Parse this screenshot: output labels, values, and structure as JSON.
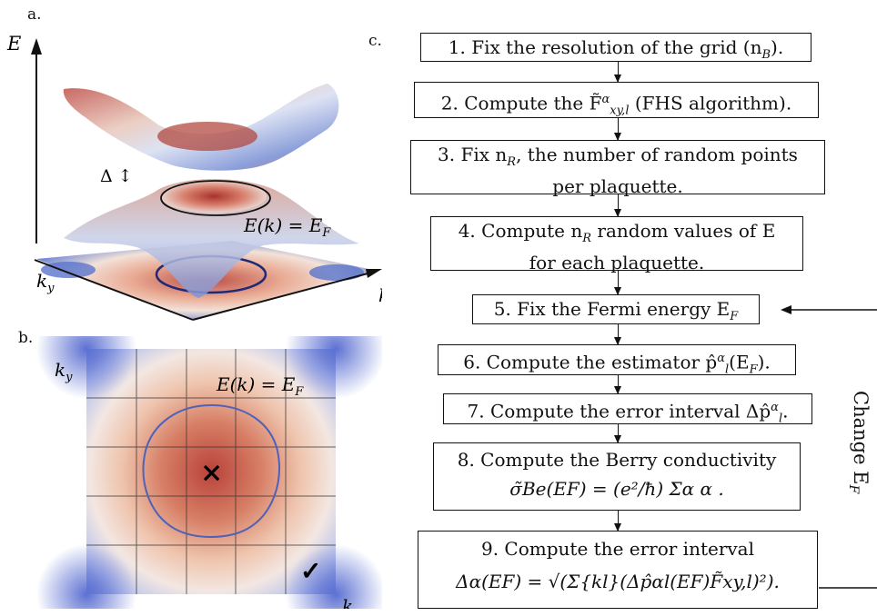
{
  "panel_a": {
    "label": "a.",
    "axis_E": "E",
    "axis_kx": "k",
    "axis_kx_sub": "x",
    "axis_ky": "k",
    "axis_ky_sub": "y",
    "gap_label": "Δ ↕",
    "surface_label": "E(k) = E",
    "surface_label_sub": "F"
  },
  "panel_b": {
    "label": "b.",
    "axis_ky": "k",
    "axis_ky_sub": "y",
    "axis_kx": "k",
    "axis_kx_sub": "x",
    "contour_label": "E(k) = E",
    "contour_label_sub": "F",
    "cross_mark": "×",
    "check_mark": "✓"
  },
  "panel_c": {
    "label": "c.",
    "side_label": "Change E",
    "side_label_sub": "F",
    "steps": [
      {
        "line1": "1. Fix the resolution of the grid (n",
        "sub1": "B",
        "tail1": ")."
      },
      {
        "line1": "2. Compute the F̃",
        "sup1": "α",
        "sub1": "xy,l",
        "tail1": " (FHS algorithm)."
      },
      {
        "line1": "3. Fix n",
        "sub1": "R",
        "tail1": ", the number of random points",
        "line2": "per plaquette."
      },
      {
        "line1": "4. Compute n",
        "sub1": "R",
        "tail1": " random values of E",
        "line2": "for each plaquette."
      },
      {
        "line1": "5. Fix the Fermi energy E",
        "sub1": "F",
        "tail1": ""
      },
      {
        "line1": "6. Compute the estimator p̂",
        "sup1": "α",
        "sub1": "l",
        "tail1": "(E",
        "sub2": "F",
        "tail2": ")."
      },
      {
        "line1": "7. Compute the error interval Δp̂",
        "sup1": "α",
        "sub1": "l",
        "tail1": "."
      },
      {
        "line1": "8. Compute the Berry conductivity",
        "line2": "σ̃Be(EF) = (e²/ħ) Σα 𝔆̃α ."
      },
      {
        "line1": "9. Compute the error interval",
        "line2": "Δ𝔆̃α(EF) = √(Σ{kl}(Δp̂αl(EF)F̃xy,l)²)."
      }
    ]
  }
}
